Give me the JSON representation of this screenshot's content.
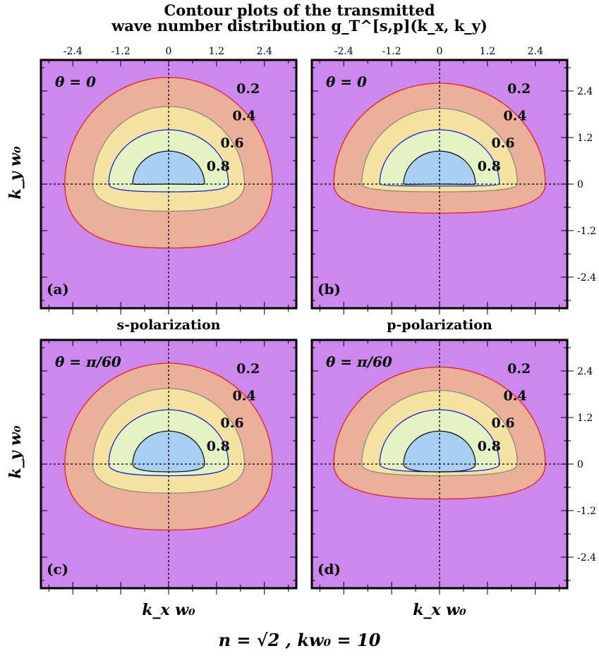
{
  "title_line1": "Contour plots of the transmitted",
  "title_line2": "wave number distribution g_T^[s,p](k_x, k_y)",
  "s_polarization": "s-polarization",
  "p_polarization": "p-polarization",
  "ylabel": "k_y w₀",
  "xlabel": "k_x w₀",
  "footer": "n = √2   ,   kw₀ = 10",
  "chart_data": [
    {
      "type": "contour",
      "panel": "(a)",
      "annotation": "θ = 0",
      "polarization": "s",
      "xlim": [
        -3.2,
        3.2
      ],
      "ylim": [
        -3.2,
        3.2
      ],
      "xticks": [
        "-2.4",
        "-1.2",
        "0",
        "1.2",
        "2.4"
      ],
      "yticks": [
        "2.4",
        "1.2",
        "0",
        "-1.2",
        "-2.4"
      ],
      "levels": [
        {
          "label": "0.2",
          "x_extent": [
            -2.6,
            2.6
          ],
          "y_extent": [
            -1.65,
            2.75
          ]
        },
        {
          "label": "0.4",
          "x_extent": [
            -1.9,
            1.9
          ],
          "y_extent": [
            -0.7,
            2.0
          ]
        },
        {
          "label": "0.6",
          "x_extent": [
            -1.5,
            1.5
          ],
          "y_extent": [
            -0.2,
            1.4
          ]
        },
        {
          "label": "0.8",
          "x_extent": [
            -0.9,
            0.9
          ],
          "y_extent": [
            0.0,
            0.85
          ]
        }
      ]
    },
    {
      "type": "contour",
      "panel": "(b)",
      "annotation": "θ = 0",
      "polarization": "p",
      "xlim": [
        -3.2,
        3.2
      ],
      "ylim": [
        -3.2,
        3.2
      ],
      "xticks": [
        "-2.4",
        "-1.2",
        "0",
        "1.2",
        "2.4"
      ],
      "yticks": [
        "2.4",
        "1.2",
        "0",
        "-1.2",
        "-2.4"
      ],
      "levels": [
        {
          "label": "0.2",
          "x_extent": [
            -2.65,
            2.65
          ],
          "y_extent": [
            -0.75,
            2.6
          ]
        },
        {
          "label": "0.4",
          "x_extent": [
            -1.95,
            1.95
          ],
          "y_extent": [
            -0.2,
            1.95
          ]
        },
        {
          "label": "0.6",
          "x_extent": [
            -1.5,
            1.5
          ],
          "y_extent": [
            -0.05,
            1.4
          ]
        },
        {
          "label": "0.8",
          "x_extent": [
            -0.9,
            0.9
          ],
          "y_extent": [
            0.0,
            0.85
          ]
        }
      ]
    },
    {
      "type": "contour",
      "panel": "(c)",
      "annotation": "θ = π/60",
      "polarization": "s",
      "xlim": [
        -3.2,
        3.2
      ],
      "ylim": [
        -3.2,
        3.2
      ],
      "xticks": [
        "-2.4",
        "-1.2",
        "0",
        "1.2",
        "2.4"
      ],
      "yticks": [
        "2.4",
        "1.2",
        "0",
        "-1.2",
        "-2.4"
      ],
      "levels": [
        {
          "label": "0.2",
          "x_extent": [
            -2.6,
            2.6
          ],
          "y_extent": [
            -1.7,
            2.6
          ]
        },
        {
          "label": "0.4",
          "x_extent": [
            -1.9,
            1.9
          ],
          "y_extent": [
            -0.75,
            1.95
          ]
        },
        {
          "label": "0.6",
          "x_extent": [
            -1.5,
            1.5
          ],
          "y_extent": [
            -0.3,
            1.4
          ]
        },
        {
          "label": "0.8",
          "x_extent": [
            -0.9,
            0.9
          ],
          "y_extent": [
            -0.2,
            0.85
          ]
        }
      ]
    },
    {
      "type": "contour",
      "panel": "(d)",
      "annotation": "θ = π/60",
      "polarization": "p",
      "xlim": [
        -3.2,
        3.2
      ],
      "ylim": [
        -3.2,
        3.2
      ],
      "xticks": [
        "-2.4",
        "-1.2",
        "0",
        "1.2",
        "2.4"
      ],
      "yticks": [
        "2.4",
        "1.2",
        "0",
        "-1.2",
        "-2.4"
      ],
      "levels": [
        {
          "label": "0.2",
          "x_extent": [
            -2.65,
            2.65
          ],
          "y_extent": [
            -0.9,
            2.5
          ]
        },
        {
          "label": "0.4",
          "x_extent": [
            -1.95,
            1.95
          ],
          "y_extent": [
            -0.3,
            1.9
          ]
        },
        {
          "label": "0.6",
          "x_extent": [
            -1.5,
            1.5
          ],
          "y_extent": [
            -0.2,
            1.4
          ]
        },
        {
          "label": "0.8",
          "x_extent": [
            -0.9,
            0.9
          ],
          "y_extent": [
            -0.2,
            0.85
          ]
        }
      ]
    }
  ]
}
